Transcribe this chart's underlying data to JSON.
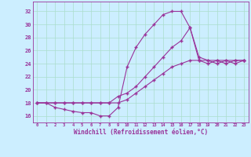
{
  "xlabel": "Windchill (Refroidissement éolien,°C)",
  "bg_color": "#cceeff",
  "line_color": "#993399",
  "xlim": [
    -0.5,
    23.5
  ],
  "ylim": [
    15.0,
    33.5
  ],
  "xticks": [
    0,
    1,
    2,
    3,
    4,
    5,
    6,
    7,
    8,
    9,
    10,
    11,
    12,
    13,
    14,
    15,
    16,
    17,
    18,
    19,
    20,
    21,
    22,
    23
  ],
  "yticks": [
    16,
    18,
    20,
    22,
    24,
    26,
    28,
    30,
    32
  ],
  "grid_color": "#aaddcc",
  "line1_x": [
    0,
    1,
    2,
    3,
    4,
    5,
    6,
    7,
    8,
    9,
    10,
    11,
    12,
    13,
    14,
    15,
    16,
    17,
    18,
    19,
    20,
    21,
    22,
    23
  ],
  "line1_y": [
    18,
    18,
    17.3,
    17.0,
    16.7,
    16.5,
    16.5,
    16.0,
    16.0,
    17.3,
    23.5,
    26.5,
    28.5,
    30.0,
    31.5,
    32.0,
    32.0,
    29.5,
    25.0,
    24.5,
    24.0,
    24.5,
    24.0,
    24.5
  ],
  "line2_x": [
    0,
    2,
    3,
    4,
    5,
    6,
    7,
    8,
    9,
    10,
    11,
    12,
    13,
    14,
    15,
    16,
    17,
    18,
    19,
    20,
    21,
    22,
    23
  ],
  "line2_y": [
    18,
    18,
    18,
    18,
    18,
    18,
    18,
    18,
    19.0,
    19.5,
    20.5,
    22.0,
    23.5,
    25.0,
    26.5,
    27.5,
    29.5,
    24.5,
    24.0,
    24.5,
    24.0,
    24.5,
    24.5
  ],
  "line3_x": [
    0,
    1,
    2,
    3,
    4,
    5,
    6,
    7,
    8,
    9,
    10,
    11,
    12,
    13,
    14,
    15,
    16,
    17,
    18,
    19,
    20,
    21,
    22,
    23
  ],
  "line3_y": [
    18,
    18,
    18,
    18,
    18,
    18,
    18,
    18,
    18,
    18,
    18.5,
    19.5,
    20.5,
    21.5,
    22.5,
    23.5,
    24.0,
    24.5,
    24.5,
    24.5,
    24.5,
    24.5,
    24.5,
    24.5
  ]
}
